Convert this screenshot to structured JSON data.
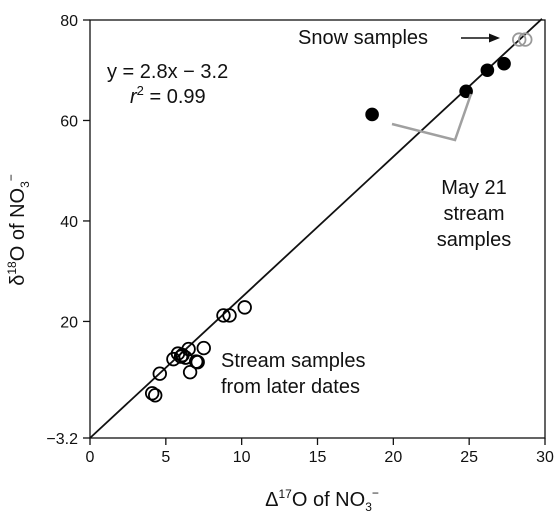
{
  "chart_data": {
    "type": "scatter",
    "xlabel": {
      "pre": "Δ",
      "sup1": "17",
      "mid": "O of NO",
      "sub": "3",
      "sup2": "−"
    },
    "ylabel": {
      "pre": "δ",
      "sup1": "18",
      "mid": "O of NO",
      "sub": "3",
      "sup2": "−"
    },
    "xlim": [
      0,
      30
    ],
    "ylim": [
      -3.2,
      80
    ],
    "xticks": [
      0,
      5,
      10,
      15,
      20,
      25,
      30
    ],
    "yticks": [
      -3.2,
      20,
      40,
      60,
      80
    ],
    "ytick_labels": [
      "−3.2",
      "20",
      "40",
      "60",
      "80"
    ],
    "grid": false,
    "fit_line": {
      "slope": 2.8,
      "intercept": -3.2,
      "x_range": [
        0,
        29.8
      ]
    },
    "equation": {
      "line1": "y = 2.8x − 3.2",
      "r": "r",
      "r_sup": "2",
      "r_rest": " = 0.99"
    },
    "annotations": {
      "snow": "Snow samples",
      "may21": [
        "May 21",
        "stream",
        "samples"
      ],
      "later": [
        "Stream samples",
        "from later dates"
      ]
    },
    "series": [
      {
        "label_key": "snow",
        "marker": "open-circle",
        "color": "#999999",
        "x": [
          28.3,
          28.7
        ],
        "y": [
          76.1,
          76.1
        ]
      },
      {
        "label_key": "may21",
        "marker": "filled-circle",
        "color": "#000000",
        "x": [
          18.6,
          24.8,
          26.2,
          27.3
        ],
        "y": [
          61.2,
          65.8,
          70.0,
          71.3
        ]
      },
      {
        "label_key": "later",
        "marker": "open-circle",
        "color": "#000000",
        "x": [
          4.1,
          4.3,
          4.6,
          5.5,
          5.8,
          6.0,
          6.1,
          6.3,
          6.5,
          6.6,
          7.0,
          7.1,
          7.5,
          8.8,
          9.2,
          10.2
        ],
        "y": [
          5.7,
          5.3,
          9.6,
          12.5,
          13.6,
          13.0,
          13.3,
          12.8,
          14.5,
          9.9,
          12.0,
          11.9,
          14.7,
          21.2,
          21.2,
          22.8
        ]
      }
    ]
  }
}
